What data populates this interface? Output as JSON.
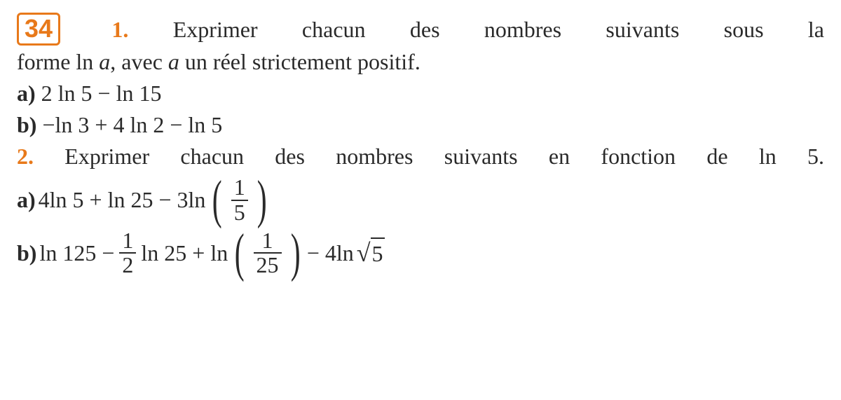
{
  "exercise": {
    "number": "34",
    "q1_number": "1.",
    "q1_text_a": "Exprimer chacun des nombres suivants sous la",
    "q1_text_b_pre": "forme ln ",
    "q1_var": "a",
    "q1_text_b_mid": ", avec ",
    "q1_text_b_post": " un réel strictement positif.",
    "q1a_label": "a)",
    "q1a_expr": " 2 ln 5 − ln 15",
    "q1b_label": "b)",
    "q1b_expr": " −ln 3 + 4 ln 2 − ln 5",
    "q2_number": "2.",
    "q2_text": " Exprimer chacun des nombres suivants en fonction de ln 5.",
    "q2a_label": "a)",
    "q2a_pre": " 4ln 5 + ln 25 − 3ln",
    "q2a_frac_num": "1",
    "q2a_frac_den": "5",
    "q2b_label": "b)",
    "q2b_seg1": " ln 125 − ",
    "q2b_frac1_num": "1",
    "q2b_frac1_den": "2",
    "q2b_seg2": "ln 25 + ln",
    "q2b_frac2_num": "1",
    "q2b_frac2_den": "25",
    "q2b_seg3": " − 4ln ",
    "q2b_sqrt_arg": "5"
  },
  "style": {
    "accent_color": "#e8791a",
    "text_color": "#2a2a2a",
    "background_color": "#ffffff",
    "body_font_size": 32,
    "number_box_font_size": 36,
    "paren_font_size": 76
  }
}
